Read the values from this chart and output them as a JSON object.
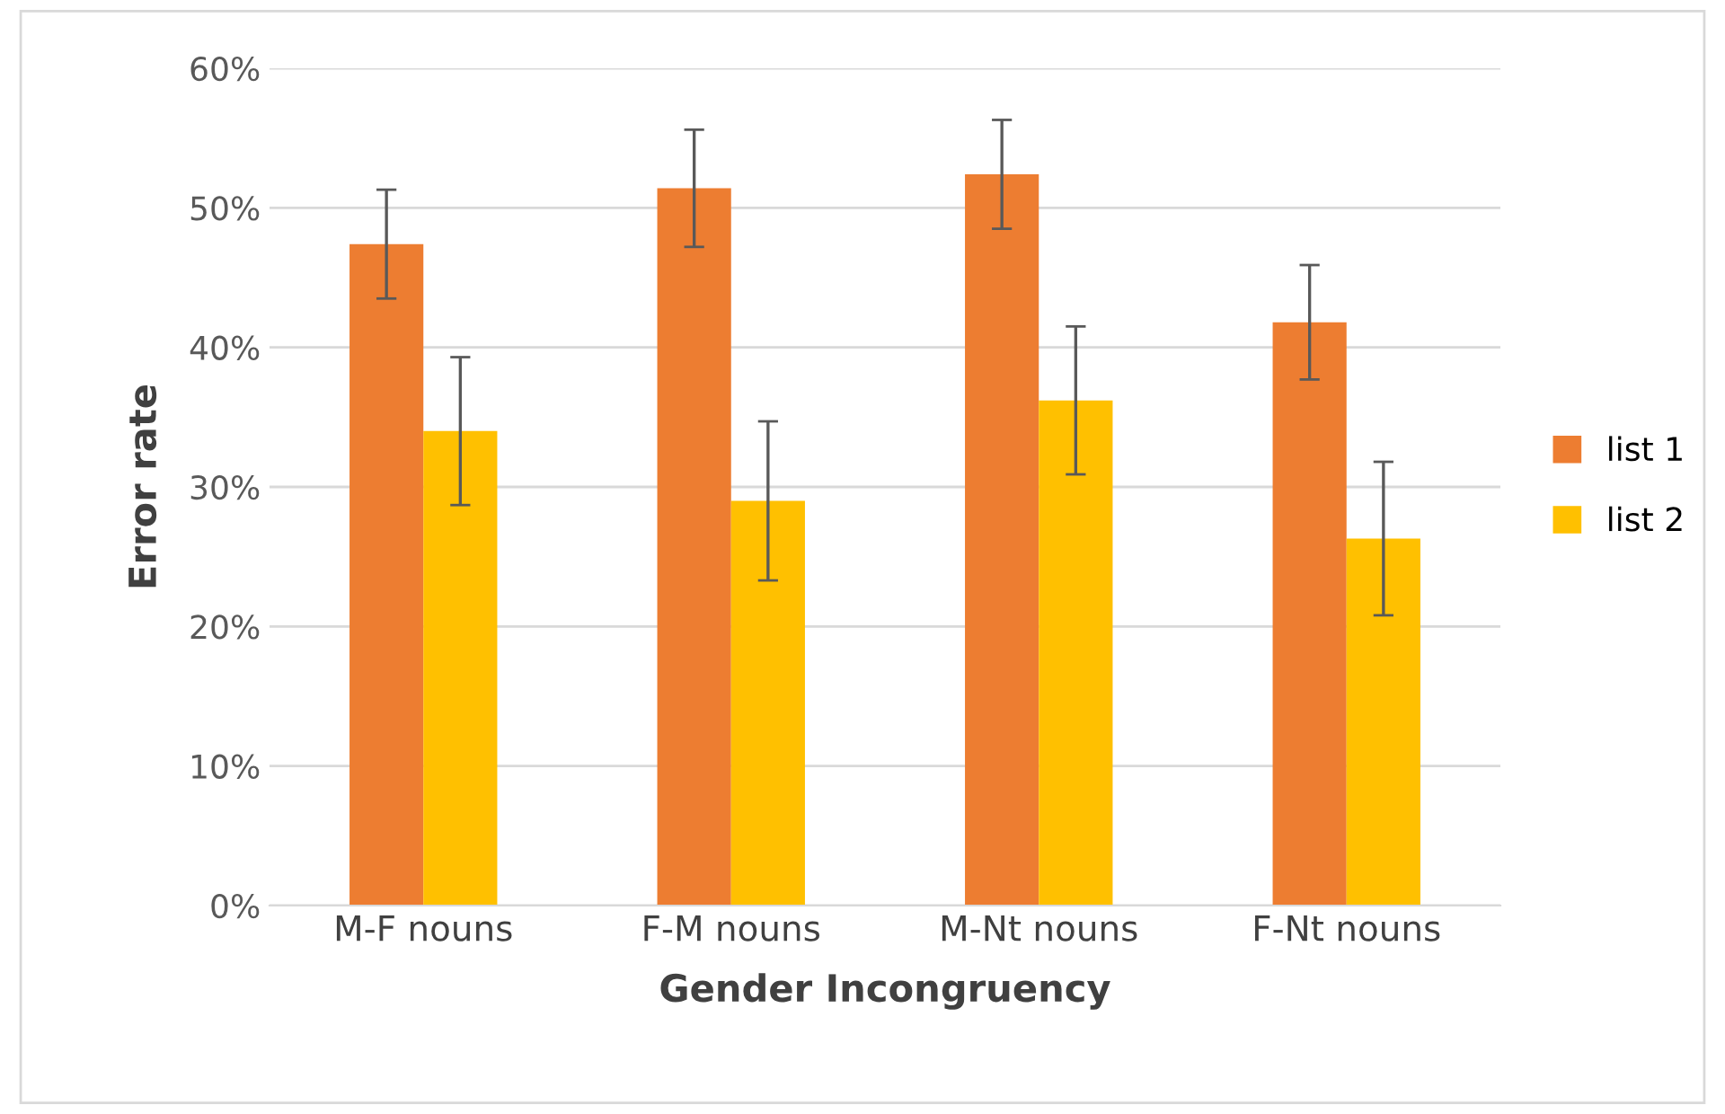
{
  "chart_data": {
    "type": "bar",
    "xlabel": "Gender Incongruency",
    "ylabel": "Error rate",
    "categories": [
      "M-F nouns",
      "F-M nouns",
      "M-Nt nouns",
      "F-Nt nouns"
    ],
    "series": [
      {
        "name": "list 1",
        "color": "#ed7d31",
        "values": [
          47.4,
          51.4,
          52.4,
          41.8
        ],
        "errors": [
          3.9,
          4.2,
          3.9,
          4.1
        ]
      },
      {
        "name": "list 2",
        "color": "#ffc000",
        "values": [
          34.0,
          29.0,
          36.2,
          26.3
        ],
        "errors": [
          5.3,
          5.7,
          5.3,
          5.5
        ]
      }
    ],
    "ylim": [
      0,
      60
    ],
    "yticks": [
      {
        "value": 0,
        "label": "0%"
      },
      {
        "value": 10,
        "label": "10%"
      },
      {
        "value": 20,
        "label": "20%"
      },
      {
        "value": 30,
        "label": "30%"
      },
      {
        "value": 40,
        "label": "40%"
      },
      {
        "value": 50,
        "label": "50%"
      },
      {
        "value": 60,
        "label": "60%"
      }
    ],
    "grid": "y",
    "legend": "right"
  }
}
